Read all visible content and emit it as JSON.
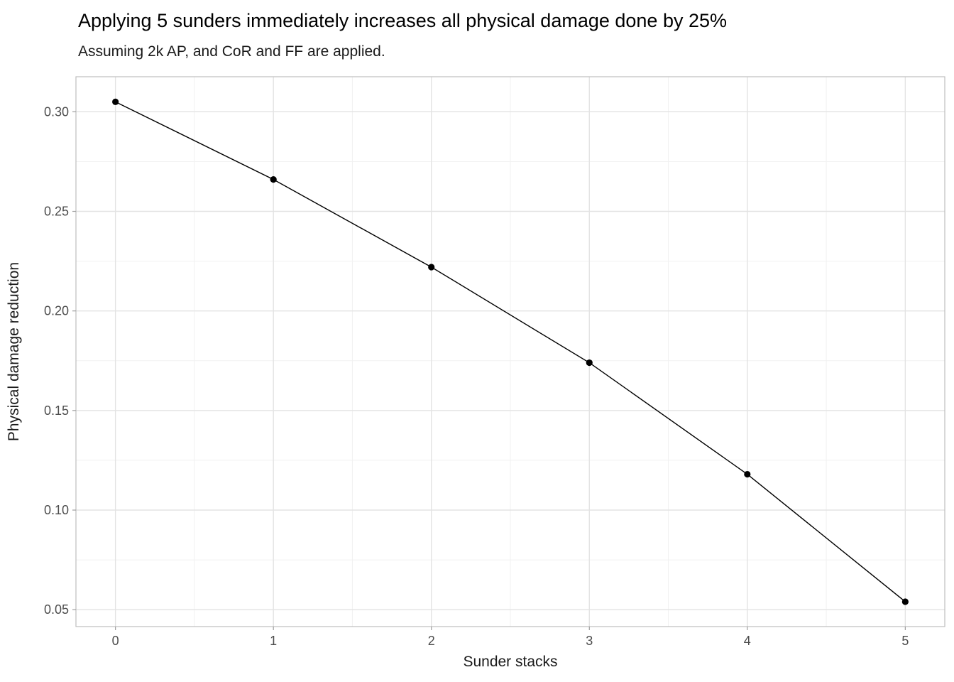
{
  "chart_data": {
    "type": "line",
    "title": "Applying 5 sunders immediately increases all physical damage done by 25%",
    "subtitle": "Assuming 2k AP, and CoR and FF are applied.",
    "xlabel": "Sunder stacks",
    "ylabel": "Physical damage reduction",
    "x": [
      0,
      1,
      2,
      3,
      4,
      5
    ],
    "y": [
      0.305,
      0.266,
      0.222,
      0.174,
      0.118,
      0.054
    ],
    "xlim": [
      -0.25,
      5.25
    ],
    "ylim": [
      0.0415,
      0.3176
    ],
    "x_ticks": [
      {
        "v": 0,
        "label": "0"
      },
      {
        "v": 1,
        "label": "1"
      },
      {
        "v": 2,
        "label": "2"
      },
      {
        "v": 3,
        "label": "3"
      },
      {
        "v": 4,
        "label": "4"
      },
      {
        "v": 5,
        "label": "5"
      }
    ],
    "y_ticks": [
      {
        "v": 0.05,
        "label": "0.05"
      },
      {
        "v": 0.1,
        "label": "0.10"
      },
      {
        "v": 0.15,
        "label": "0.15"
      },
      {
        "v": 0.2,
        "label": "0.20"
      },
      {
        "v": 0.25,
        "label": "0.25"
      },
      {
        "v": 0.3,
        "label": "0.30"
      }
    ],
    "x_minor": [
      0.5,
      1.5,
      2.5,
      3.5,
      4.5
    ],
    "y_minor": [
      0.075,
      0.125,
      0.175,
      0.225,
      0.275
    ],
    "grid": true,
    "legend": "none",
    "style": {
      "background": "#ffffff",
      "panel_bg": "#ffffff",
      "panel_border_color": "#bdbdbd",
      "grid_major_color": "#e3e3e3",
      "grid_minor_color": "#f1f1f1",
      "tick_mark_color": "#9e9e9e",
      "line_color": "#000000",
      "point_color": "#000000",
      "tick_label_color": "#4d4d4d",
      "text_color": "#1a1a1a"
    }
  }
}
